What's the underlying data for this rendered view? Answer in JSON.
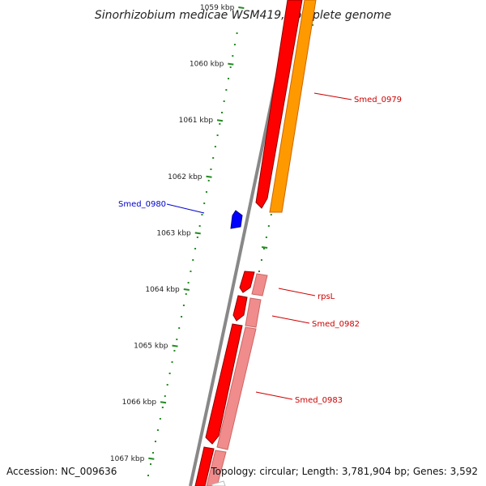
{
  "title": "Sinorhizobium medicae WSM419, complete genome",
  "accession": "Accession: NC_009636",
  "summary": "Topology: circular; Length: 3,781,904 bp; Genes: 3,592",
  "ticks": [
    {
      "label": "1059 kbp"
    },
    {
      "label": "1060 kbp"
    },
    {
      "label": "1061 kbp"
    },
    {
      "label": "1062 kbp"
    },
    {
      "label": "1063 kbp"
    },
    {
      "label": "1064 kbp"
    },
    {
      "label": "1065 kbp"
    },
    {
      "label": "1066 kbp"
    },
    {
      "label": "1067 kbp"
    }
  ],
  "genes": [
    {
      "name": "Smed_0979",
      "color": "#cc0000"
    },
    {
      "name": "Smed_0980",
      "color": "#0000cc"
    },
    {
      "name": "rpsL",
      "color": "#cc0000"
    },
    {
      "name": "Smed_0982",
      "color": "#cc0000"
    },
    {
      "name": "Smed_0983",
      "color": "#cc0000"
    }
  ],
  "colors": {
    "cds": "#ff0000",
    "gene_orange": "#ff9900",
    "gene_pink": "#f08c8c",
    "reverse_cds": "#0000ff",
    "backbone": "#888888",
    "ticks": "#228b22"
  }
}
